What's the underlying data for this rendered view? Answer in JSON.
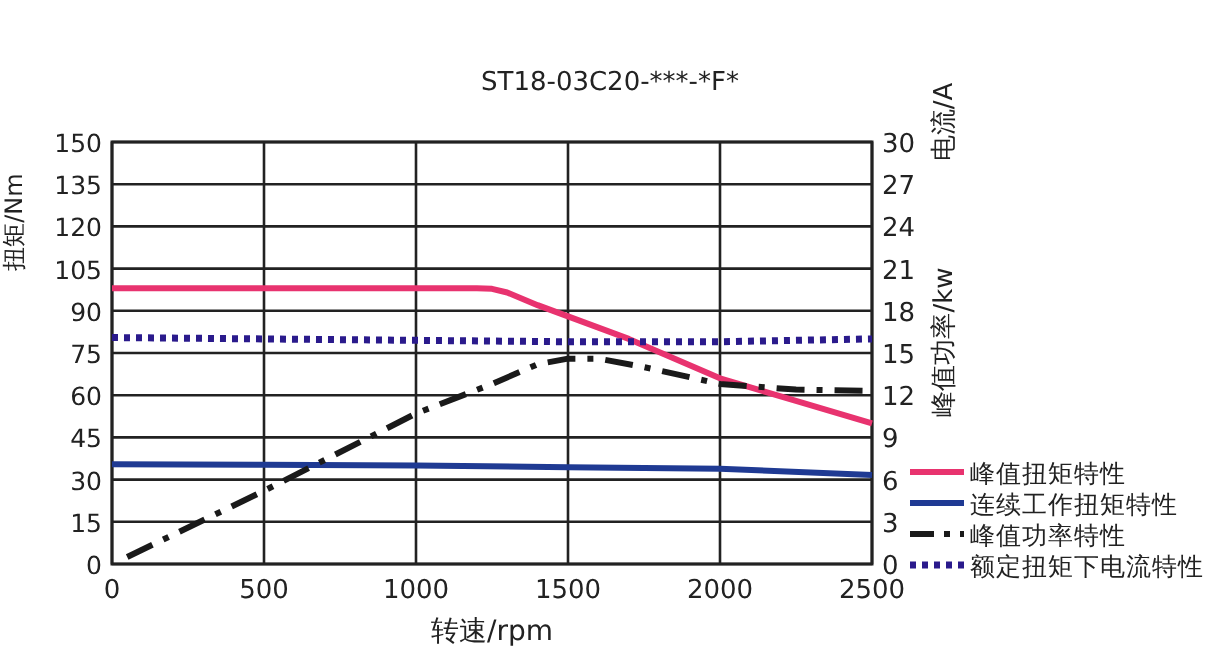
{
  "chart_data": {
    "type": "line",
    "title": "ST18-03C20-***-*F*",
    "xlabel": "转速/rpm",
    "ylabel": "扭矩/Nm",
    "y2label": "电流/A",
    "annotations": [
      "峰值功率/kw"
    ],
    "xlim": [
      0,
      2500
    ],
    "xticks": [
      0,
      500,
      1000,
      1500,
      2000,
      2500
    ],
    "ylim": [
      0,
      150
    ],
    "yticks": [
      0,
      15,
      30,
      45,
      60,
      75,
      90,
      105,
      120,
      135,
      150
    ],
    "y2lim": [
      0,
      30
    ],
    "y2ticks": [
      0,
      3,
      6,
      9,
      12,
      15,
      18,
      21,
      24,
      27,
      30
    ],
    "grid": true,
    "legend": "right",
    "marker": "none",
    "series": [
      {
        "name": "峰值扭矩特性",
        "color": "#e8336f",
        "line_style": "solid",
        "x": [
          0,
          1200,
          1250,
          1300,
          1400,
          1500,
          1700,
          2000,
          2250,
          2500
        ],
        "values": [
          98,
          98,
          97.8,
          96.5,
          92,
          88,
          80,
          66,
          58,
          50
        ]
      },
      {
        "name": "连续工作扭矩特性",
        "color": "#1f3a93",
        "line_style": "solid",
        "x": [
          0,
          500,
          1000,
          1500,
          2000,
          2500
        ],
        "values": [
          35.5,
          35.3,
          35,
          34.4,
          33.9,
          31.6
        ]
      },
      {
        "name": "峰值功率特性",
        "color": "#1a1a1a",
        "line_style": "dashed",
        "axis": "y2",
        "x": [
          50,
          500,
          1000,
          1250,
          1400,
          1500,
          1600,
          1750,
          2000,
          2250,
          2500
        ],
        "values": [
          0.5,
          5.2,
          10.7,
          12.8,
          14.2,
          14.6,
          14.6,
          14.0,
          12.8,
          12.4,
          12.3
        ]
      },
      {
        "name": "额定扭矩下电流特性",
        "color": "#2a1a8c",
        "line_style": "dotted",
        "axis": "y2",
        "x": [
          0,
          1000,
          1500,
          2000,
          2500
        ],
        "values": [
          16.1,
          15.9,
          15.8,
          15.8,
          16.0
        ]
      }
    ]
  }
}
